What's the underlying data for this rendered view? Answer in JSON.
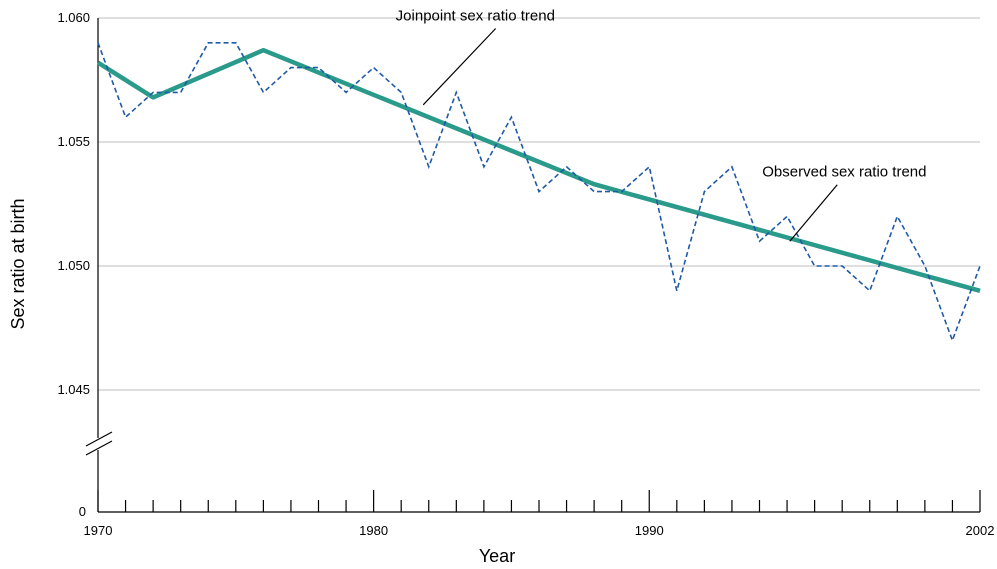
{
  "chart_data": {
    "type": "line",
    "title": "",
    "xlabel": "Year",
    "ylabel": "Sex ratio at birth",
    "xlim": [
      1970,
      2002
    ],
    "ylim": [
      1.044,
      1.06
    ],
    "y_axis_break": true,
    "y_break_bottom_label": "0",
    "x_major_ticks": [
      1970,
      1980,
      1990,
      2002
    ],
    "x_minor_ticks": [
      1971,
      1972,
      1973,
      1974,
      1975,
      1976,
      1977,
      1978,
      1979,
      1981,
      1982,
      1983,
      1984,
      1985,
      1986,
      1987,
      1988,
      1989,
      1991,
      1992,
      1993,
      1994,
      1995,
      1996,
      1997,
      1998,
      1999,
      2000,
      2001
    ],
    "x_tick_labels": [
      "1970",
      "1980",
      "1990",
      "2002"
    ],
    "y_ticks": [
      1.045,
      1.05,
      1.055,
      1.06
    ],
    "y_tick_labels": [
      "1.045",
      "1.050",
      "1.055",
      "1.060"
    ],
    "grid": "horizontal",
    "colors": {
      "joinpoint": "#2a9a8a",
      "observed": "#1f5aa6",
      "grid": "#bfbfbf"
    },
    "series": [
      {
        "name": "Joinpoint sex ratio trend",
        "style": "solid",
        "x": [
          1970,
          1972,
          1976,
          1988,
          2002
        ],
        "y": [
          1.0582,
          1.0568,
          1.0587,
          1.0533,
          1.049
        ]
      },
      {
        "name": "Observed sex ratio trend",
        "style": "dashed",
        "x": [
          1970,
          1971,
          1972,
          1973,
          1974,
          1975,
          1976,
          1977,
          1978,
          1979,
          1980,
          1981,
          1982,
          1983,
          1984,
          1985,
          1986,
          1987,
          1988,
          1989,
          1990,
          1991,
          1992,
          1993,
          1994,
          1995,
          1996,
          1997,
          1998,
          1999,
          2000,
          2001,
          2002
        ],
        "y": [
          1.059,
          1.056,
          1.057,
          1.057,
          1.059,
          1.059,
          1.057,
          1.058,
          1.058,
          1.057,
          1.058,
          1.057,
          1.054,
          1.057,
          1.054,
          1.056,
          1.053,
          1.054,
          1.053,
          1.053,
          1.054,
          1.049,
          1.053,
          1.054,
          1.051,
          1.052,
          1.05,
          1.05,
          1.049,
          1.052,
          1.05,
          1.047,
          1.05
        ]
      }
    ],
    "annotations": [
      {
        "text": "Joinpoint sex ratio trend",
        "x": 1980.8,
        "y": 1.0599,
        "arrow_to": [
          1981.8,
          1.0565
        ]
      },
      {
        "text": "Observed sex ratio trend",
        "x": 1994.1,
        "y": 1.0536,
        "arrow_to": [
          1995.1,
          1.051
        ]
      }
    ]
  }
}
